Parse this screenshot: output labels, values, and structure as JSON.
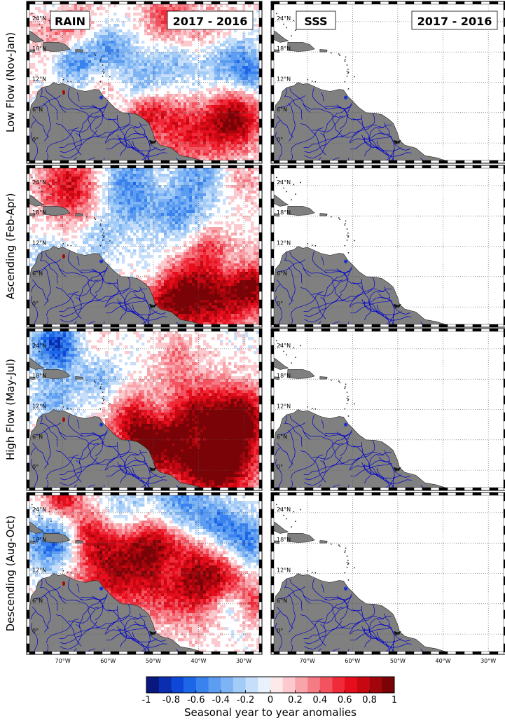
{
  "figure": {
    "columns": [
      {
        "variable": "RAIN",
        "period": "2017 - 2016",
        "field": "rain"
      },
      {
        "variable": "SSS",
        "period": "2017 - 2016",
        "field": "sss"
      }
    ],
    "rows": [
      {
        "label": "Low Flow (Nov-Jan)"
      },
      {
        "label": "Ascending (Feb-Apr)"
      },
      {
        "label": "High Flow (May-Jul)"
      },
      {
        "label": "Descending (Aug-Oct)"
      }
    ],
    "map_extent": {
      "lon": [
        -78,
        -26
      ],
      "lat": [
        -4,
        28
      ]
    },
    "lat_ticks": [
      {
        "value": 24,
        "label": "24°N"
      },
      {
        "value": 18,
        "label": "18°N"
      },
      {
        "value": 12,
        "label": "12°N"
      },
      {
        "value": 6,
        "label": "6°N"
      },
      {
        "value": 0,
        "label": "0°"
      }
    ],
    "lon_ticks": [
      {
        "value": -70,
        "label": "70°W"
      },
      {
        "value": -60,
        "label": "60°W"
      },
      {
        "value": -50,
        "label": "50°W"
      },
      {
        "value": -40,
        "label": "40°W"
      },
      {
        "value": -30,
        "label": "30°W"
      }
    ],
    "colorbar": {
      "title": "Seasonal year to year anomalies",
      "range": [
        -1,
        1
      ],
      "step": 0.1,
      "ticks": [
        "-1",
        "-0.8",
        "-0.6",
        "-0.4",
        "-0.2",
        "0",
        "0.2",
        "0.4",
        "0.6",
        "0.8",
        "1"
      ],
      "colors": [
        "#08187e",
        "#0b2db0",
        "#0f48d8",
        "#1c66e8",
        "#3a82ee",
        "#5c9cf1",
        "#7fb4f4",
        "#a3cbf7",
        "#c6def9",
        "#e8f1fc",
        "#fde8ea",
        "#fbc9ce",
        "#f8a4ab",
        "#f57b85",
        "#f2535f",
        "#ef2a39",
        "#e60d1c",
        "#c70812",
        "#a3050c",
        "#7a0307"
      ]
    },
    "colors": {
      "land": "#808080",
      "rivers": "#0000cc",
      "grid": "#555555",
      "anomaly_spot": "#b00000"
    }
  }
}
